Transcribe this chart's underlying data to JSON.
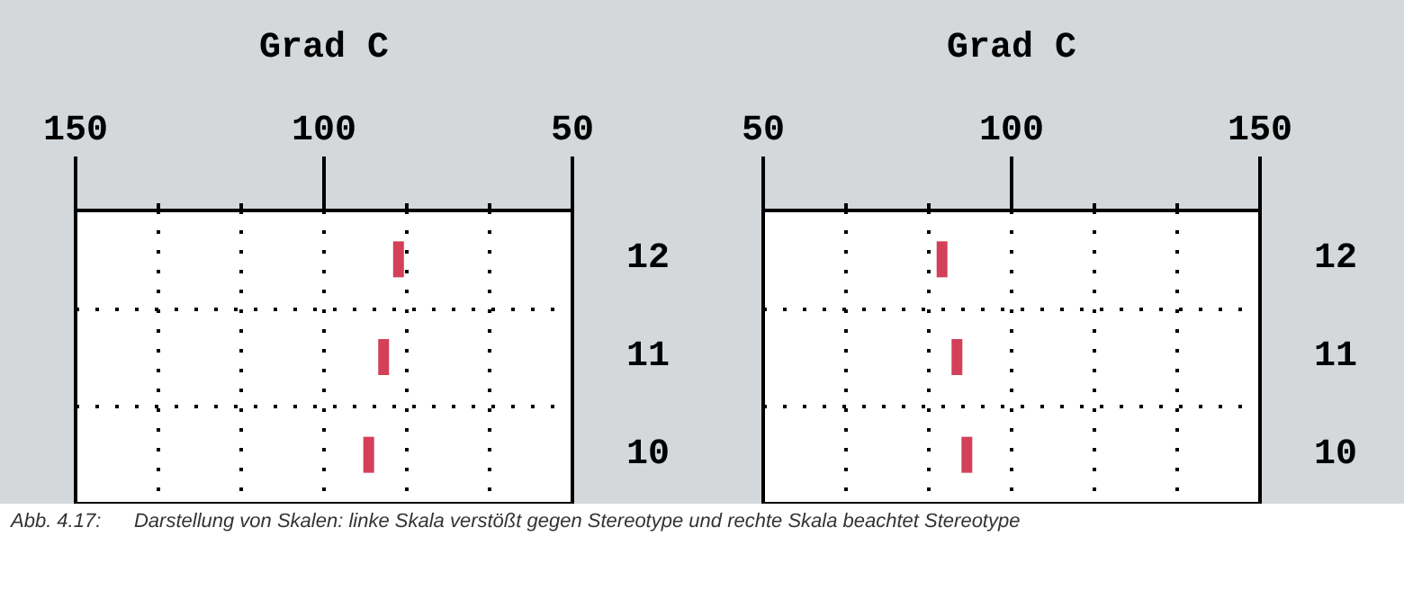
{
  "chart_data": [
    {
      "type": "scatter",
      "orientation": "horizontal",
      "xlabel": "Grad C",
      "categories": [
        "12",
        "11",
        "10"
      ],
      "series": [
        {
          "color": "#c8102e",
          "values": [
            85,
            88,
            91
          ]
        }
      ],
      "xlim": [
        150,
        50
      ],
      "xticks": [
        150,
        100,
        50
      ],
      "grid": true,
      "annotations": [
        "Abb. 4.17:      Darstellung von Skalen: linke Skala verstößt gegen Stereotype und rechte Skala beachtet Stereotype"
      ]
    },
    {
      "type": "scatter",
      "orientation": "horizontal",
      "xlabel": "Grad C",
      "categories": [
        "12",
        "11",
        "10"
      ],
      "series": [
        {
          "color": "#c8102e",
          "values": [
            86,
            89,
            91
          ]
        }
      ],
      "xlim": [
        50,
        150
      ],
      "xticks": [
        50,
        100,
        150
      ],
      "grid": true
    }
  ]
}
